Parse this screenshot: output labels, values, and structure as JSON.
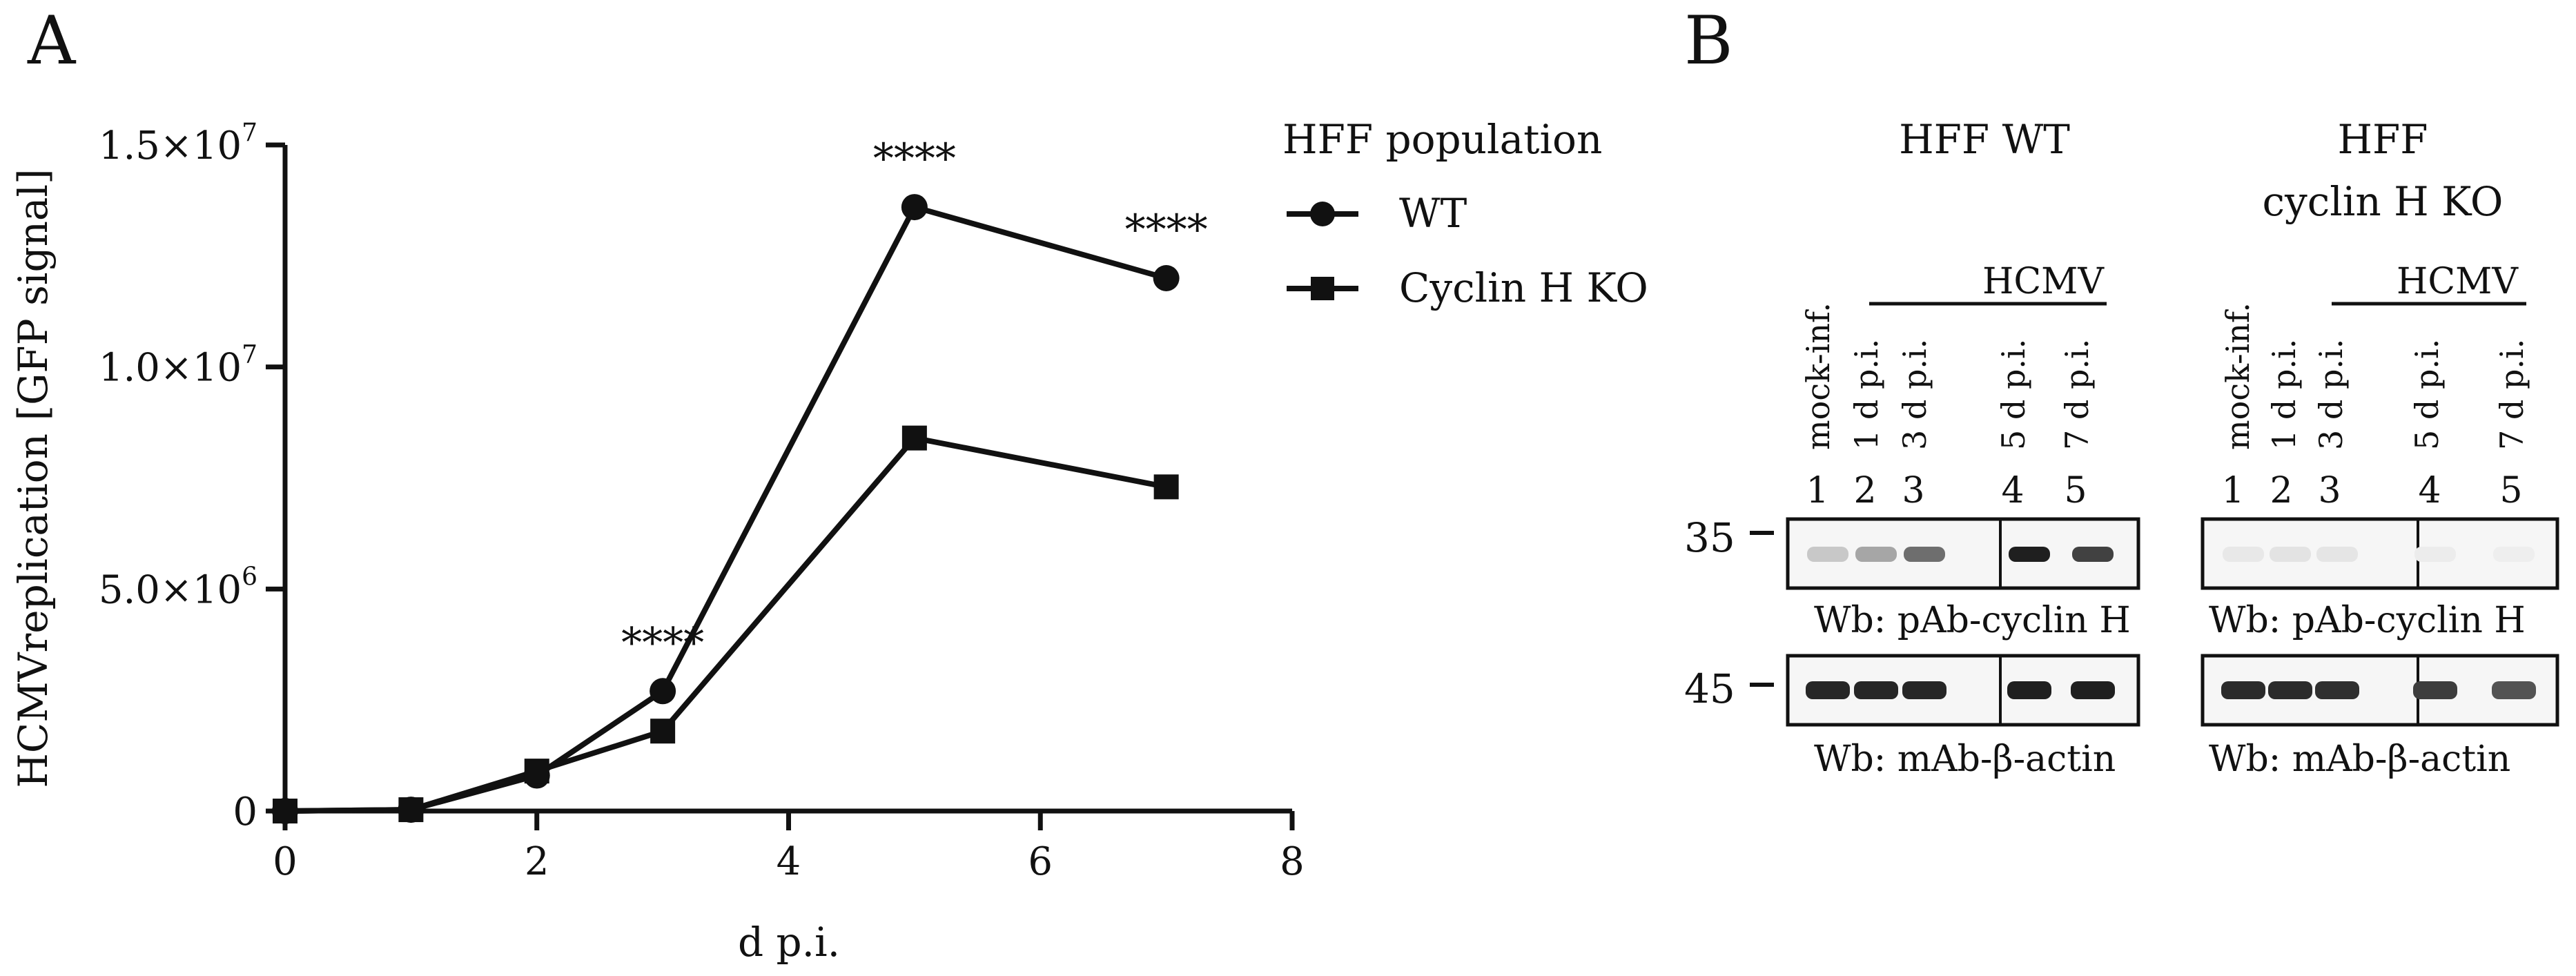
{
  "panels": {
    "a": "A",
    "b": "B"
  },
  "chart_data": {
    "type": "line",
    "xlabel": "d p.i.",
    "ylabel": "HCMVreplication [GFP signal]",
    "xlim": [
      0,
      8
    ],
    "ylim": [
      0,
      15000000
    ],
    "x_ticks": [
      "0",
      "2",
      "4",
      "6",
      "8"
    ],
    "y_ticks": [
      {
        "value": 0,
        "label": "0",
        "exp": ""
      },
      {
        "value": 5000000,
        "label": "5.0×10",
        "exp": "6"
      },
      {
        "value": 10000000,
        "label": "1.0×10",
        "exp": "7"
      },
      {
        "value": 15000000,
        "label": "1.5×10",
        "exp": "7"
      }
    ],
    "legend_title": "HFF population",
    "series": [
      {
        "name": "WT",
        "marker": "circle",
        "x": [
          0,
          1,
          2,
          3,
          5,
          7
        ],
        "values": [
          0,
          30000,
          800000,
          2700000,
          13600000,
          12000000
        ]
      },
      {
        "name": "Cyclin H KO",
        "marker": "square",
        "x": [
          0,
          1,
          2,
          3,
          5,
          7
        ],
        "values": [
          0,
          30000,
          900000,
          1800000,
          8400000,
          7300000
        ]
      }
    ],
    "annotations": [
      {
        "text": "****",
        "x": 3
      },
      {
        "text": "****",
        "x": 5
      },
      {
        "text": "****",
        "x": 7
      }
    ]
  },
  "blot": {
    "groups": [
      {
        "title_lines": [
          "HFF WT"
        ],
        "hcmv": "HCMV",
        "lanes": [
          "mock-inf.",
          "1 d p.i.",
          "3 d p.i.",
          "5 d p.i.",
          "7 d p.i."
        ],
        "numbers": [
          "1",
          "2",
          "3",
          "4",
          "5"
        ],
        "caption_top": "Wb: pAb-cyclin H",
        "caption_bottom": "Wb: mAb-β-actin",
        "cyclin_intensity": [
          0.2,
          0.35,
          0.6,
          0.95,
          0.8
        ],
        "actin_intensity": [
          0.92,
          0.92,
          0.92,
          0.95,
          0.95
        ]
      },
      {
        "title_lines": [
          "HFF",
          "cyclin H KO"
        ],
        "hcmv": "HCMV",
        "lanes": [
          "mock-inf.",
          "1 d p.i.",
          "3 d p.i.",
          "5 d p.i.",
          "7 d p.i."
        ],
        "numbers": [
          "1",
          "2",
          "3",
          "4",
          "5"
        ],
        "caption_top": "Wb: pAb-cyclin H",
        "caption_bottom": "Wb: mAb-β-actin",
        "cyclin_intensity": [
          0.06,
          0.08,
          0.07,
          0.04,
          0.03
        ],
        "actin_intensity": [
          0.9,
          0.9,
          0.88,
          0.82,
          0.72
        ]
      }
    ],
    "markers": [
      "35",
      "45"
    ]
  }
}
